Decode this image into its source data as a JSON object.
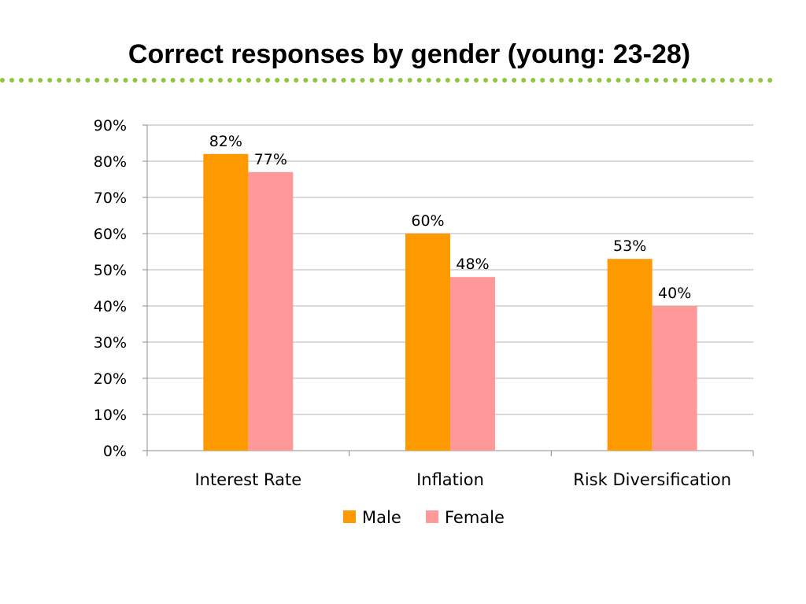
{
  "slide": {
    "title": "Correct responses by gender (young: 23-28)"
  },
  "colors": {
    "accent_rule": "#8dc63f",
    "male": "#ff9900",
    "female": "#ff9999",
    "gridline": "#b3b3b3",
    "axis": "#8c8c8c"
  },
  "chart_data": {
    "type": "bar",
    "title": "",
    "xlabel": "",
    "ylabel": "",
    "categories": [
      "Interest Rate",
      "Inflation",
      "Risk Diversification"
    ],
    "series": [
      {
        "name": "Male",
        "values": [
          82,
          60,
          53
        ],
        "labels": [
          "82%",
          "60%",
          "53%"
        ],
        "color": "#ff9900"
      },
      {
        "name": "Female",
        "values": [
          77,
          48,
          40
        ],
        "labels": [
          "77%",
          "48%",
          "40%"
        ],
        "color": "#ff9999"
      }
    ],
    "ylim": [
      0,
      90
    ],
    "yticks": [
      0,
      10,
      20,
      30,
      40,
      50,
      60,
      70,
      80,
      90
    ],
    "ytick_labels": [
      "0%",
      "10%",
      "20%",
      "30%",
      "40%",
      "50%",
      "60%",
      "70%",
      "80%",
      "90%"
    ],
    "grid": true,
    "legend_position": "bottom"
  }
}
